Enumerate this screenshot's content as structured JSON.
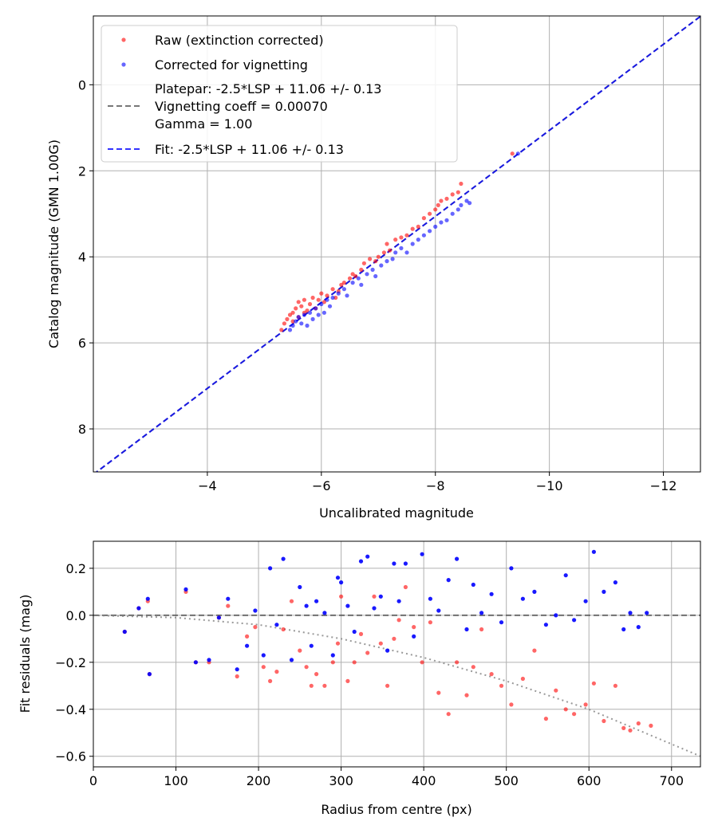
{
  "chart_data": [
    {
      "type": "scatter",
      "xlabel": "Uncalibrated magnitude",
      "ylabel": "Catalog magnitude (GMN 1.00G)",
      "xlim": [
        -2.0,
        -12.65
      ],
      "ylim": [
        9.0,
        -1.6
      ],
      "x_inverted": true,
      "y_inverted": true,
      "grid": true,
      "xticks": [
        -4,
        -6,
        -8,
        -10,
        -12
      ],
      "xtick_labels": [
        "−4",
        "−6",
        "−8",
        "−10",
        "−12"
      ],
      "yticks": [
        0,
        2,
        4,
        6,
        8
      ],
      "ytick_labels": [
        "0",
        "2",
        "4",
        "6",
        "8"
      ],
      "legend_position": "upper-left",
      "legend": [
        {
          "label": "Raw (extinction corrected)",
          "kind": "marker",
          "color": "#ff0000"
        },
        {
          "label": "Corrected for vignetting",
          "kind": "marker",
          "color": "#0000ff"
        },
        {
          "label_lines": [
            "Platepar: -2.5*LSP + 11.06 +/- 0.13",
            "Vignetting coeff = 0.00070",
            "Gamma = 1.00"
          ],
          "kind": "line",
          "color": "#555555",
          "dash": "dashed"
        },
        {
          "label": "Fit: -2.5*LSP + 11.06 +/- 0.13",
          "kind": "line",
          "color": "#0000ff",
          "dash": "dashed"
        }
      ],
      "lines": [
        {
          "name": "platepar",
          "slope": 1,
          "intercept": 11.06,
          "color": "#555555",
          "dash": "dashed"
        },
        {
          "name": "fit",
          "slope": 1,
          "intercept": 11.06,
          "color": "#0000ff",
          "dash": "dashed"
        }
      ],
      "series": [
        {
          "name": "Raw (extinction corrected)",
          "color": "#ff0000",
          "points": [
            [
              -5.3,
              5.7
            ],
            [
              -5.35,
              5.55
            ],
            [
              -5.4,
              5.45
            ],
            [
              -5.45,
              5.35
            ],
            [
              -5.5,
              5.3
            ],
            [
              -5.5,
              5.5
            ],
            [
              -5.55,
              5.2
            ],
            [
              -5.6,
              5.05
            ],
            [
              -5.6,
              5.4
            ],
            [
              -5.65,
              5.15
            ],
            [
              -5.7,
              5.0
            ],
            [
              -5.7,
              5.3
            ],
            [
              -5.75,
              5.25
            ],
            [
              -5.8,
              5.1
            ],
            [
              -5.85,
              4.95
            ],
            [
              -5.9,
              5.2
            ],
            [
              -5.95,
              5.0
            ],
            [
              -6.0,
              4.85
            ],
            [
              -6.05,
              5.05
            ],
            [
              -6.1,
              4.9
            ],
            [
              -6.2,
              4.75
            ],
            [
              -6.25,
              4.95
            ],
            [
              -6.3,
              4.8
            ],
            [
              -6.35,
              4.65
            ],
            [
              -6.4,
              4.6
            ],
            [
              -6.5,
              4.5
            ],
            [
              -6.55,
              4.4
            ],
            [
              -6.6,
              4.45
            ],
            [
              -6.7,
              4.3
            ],
            [
              -6.75,
              4.15
            ],
            [
              -6.85,
              4.05
            ],
            [
              -6.95,
              4.1
            ],
            [
              -7.0,
              4.0
            ],
            [
              -7.1,
              3.9
            ],
            [
              -7.15,
              3.7
            ],
            [
              -7.2,
              3.85
            ],
            [
              -7.3,
              3.6
            ],
            [
              -7.4,
              3.55
            ],
            [
              -7.5,
              3.5
            ],
            [
              -7.6,
              3.35
            ],
            [
              -7.7,
              3.3
            ],
            [
              -7.8,
              3.1
            ],
            [
              -7.9,
              3.0
            ],
            [
              -8.0,
              2.9
            ],
            [
              -8.05,
              2.8
            ],
            [
              -8.1,
              2.7
            ],
            [
              -8.2,
              2.65
            ],
            [
              -8.3,
              2.55
            ],
            [
              -8.4,
              2.5
            ],
            [
              -8.45,
              2.3
            ],
            [
              -9.35,
              1.6
            ]
          ]
        },
        {
          "name": "Corrected for vignetting",
          "color": "#0000ff",
          "points": [
            [
              -5.45,
              5.7
            ],
            [
              -5.5,
              5.6
            ],
            [
              -5.55,
              5.5
            ],
            [
              -5.6,
              5.4
            ],
            [
              -5.65,
              5.55
            ],
            [
              -5.7,
              5.35
            ],
            [
              -5.75,
              5.6
            ],
            [
              -5.8,
              5.3
            ],
            [
              -5.85,
              5.45
            ],
            [
              -5.9,
              5.2
            ],
            [
              -5.95,
              5.35
            ],
            [
              -6.0,
              5.1
            ],
            [
              -6.05,
              5.3
            ],
            [
              -6.1,
              5.0
            ],
            [
              -6.15,
              5.15
            ],
            [
              -6.2,
              4.95
            ],
            [
              -6.3,
              4.85
            ],
            [
              -6.4,
              4.75
            ],
            [
              -6.45,
              4.9
            ],
            [
              -6.55,
              4.6
            ],
            [
              -6.65,
              4.5
            ],
            [
              -6.7,
              4.65
            ],
            [
              -6.8,
              4.4
            ],
            [
              -6.9,
              4.3
            ],
            [
              -6.95,
              4.45
            ],
            [
              -7.05,
              4.2
            ],
            [
              -7.15,
              4.1
            ],
            [
              -7.25,
              4.05
            ],
            [
              -7.3,
              3.9
            ],
            [
              -7.4,
              3.8
            ],
            [
              -7.5,
              3.9
            ],
            [
              -7.6,
              3.7
            ],
            [
              -7.7,
              3.6
            ],
            [
              -7.8,
              3.5
            ],
            [
              -7.9,
              3.4
            ],
            [
              -8.0,
              3.3
            ],
            [
              -8.1,
              3.2
            ],
            [
              -8.2,
              3.15
            ],
            [
              -8.3,
              3.0
            ],
            [
              -8.4,
              2.9
            ],
            [
              -8.45,
              2.8
            ],
            [
              -8.55,
              2.7
            ],
            [
              -8.6,
              2.75
            ],
            [
              -9.45,
              1.6
            ]
          ]
        }
      ]
    },
    {
      "type": "scatter",
      "xlabel": "Radius from centre (px)",
      "ylabel": "Fit residuals (mag)",
      "xlim": [
        0,
        735
      ],
      "ylim": [
        -0.645,
        0.315
      ],
      "grid": true,
      "xticks": [
        0,
        100,
        200,
        300,
        400,
        500,
        600,
        700
      ],
      "xtick_labels": [
        "0",
        "100",
        "200",
        "300",
        "400",
        "500",
        "600",
        "700"
      ],
      "yticks": [
        0.2,
        0.0,
        -0.2,
        -0.4,
        -0.6
      ],
      "ytick_labels": [
        "0.2",
        "0.0",
        "−0.2",
        "−0.4",
        "−0.6"
      ],
      "lines": [
        {
          "name": "zero",
          "points": [
            [
              0,
              0
            ],
            [
              735,
              0
            ]
          ],
          "color": "#555555",
          "dash": "dashed"
        },
        {
          "name": "vignetting-model",
          "points": [
            [
              0,
              0
            ],
            [
              100,
              -0.01
            ],
            [
              200,
              -0.04
            ],
            [
              300,
              -0.1
            ],
            [
              400,
              -0.18
            ],
            [
              500,
              -0.28
            ],
            [
              600,
              -0.4
            ],
            [
              735,
              -0.6
            ]
          ],
          "color": "#808080",
          "dash": "dotted"
        }
      ],
      "series": [
        {
          "name": "Raw",
          "color": "#ff0000",
          "points": [
            [
              38,
              -0.07
            ],
            [
              55,
              0.03
            ],
            [
              66,
              0.06
            ],
            [
              68,
              -0.25
            ],
            [
              112,
              0.1
            ],
            [
              124,
              -0.2
            ],
            [
              140,
              -0.2
            ],
            [
              152,
              -0.01
            ],
            [
              163,
              0.04
            ],
            [
              174,
              -0.26
            ],
            [
              186,
              -0.09
            ],
            [
              196,
              -0.05
            ],
            [
              206,
              -0.22
            ],
            [
              214,
              -0.28
            ],
            [
              222,
              -0.24
            ],
            [
              230,
              -0.06
            ],
            [
              240,
              0.06
            ],
            [
              250,
              -0.15
            ],
            [
              258,
              -0.22
            ],
            [
              264,
              -0.3
            ],
            [
              270,
              -0.25
            ],
            [
              280,
              -0.3
            ],
            [
              290,
              -0.2
            ],
            [
              296,
              -0.12
            ],
            [
              300,
              0.08
            ],
            [
              308,
              -0.28
            ],
            [
              316,
              -0.2
            ],
            [
              324,
              -0.08
            ],
            [
              332,
              -0.16
            ],
            [
              340,
              0.08
            ],
            [
              348,
              -0.12
            ],
            [
              356,
              -0.3
            ],
            [
              364,
              -0.1
            ],
            [
              370,
              -0.02
            ],
            [
              378,
              0.12
            ],
            [
              388,
              -0.05
            ],
            [
              398,
              -0.2
            ],
            [
              408,
              -0.03
            ],
            [
              418,
              -0.33
            ],
            [
              430,
              -0.42
            ],
            [
              440,
              -0.2
            ],
            [
              452,
              -0.34
            ],
            [
              460,
              -0.22
            ],
            [
              470,
              -0.06
            ],
            [
              482,
              -0.25
            ],
            [
              494,
              -0.3
            ],
            [
              506,
              -0.38
            ],
            [
              520,
              -0.27
            ],
            [
              534,
              -0.15
            ],
            [
              548,
              -0.44
            ],
            [
              560,
              -0.32
            ],
            [
              572,
              -0.4
            ],
            [
              582,
              -0.42
            ],
            [
              596,
              -0.38
            ],
            [
              606,
              -0.29
            ],
            [
              618,
              -0.45
            ],
            [
              632,
              -0.3
            ],
            [
              642,
              -0.48
            ],
            [
              650,
              -0.49
            ],
            [
              660,
              -0.46
            ],
            [
              675,
              -0.47
            ]
          ]
        },
        {
          "name": "Corrected",
          "color": "#0000ff",
          "points": [
            [
              38,
              -0.07
            ],
            [
              55,
              0.03
            ],
            [
              66,
              0.07
            ],
            [
              68,
              -0.25
            ],
            [
              112,
              0.11
            ],
            [
              124,
              -0.2
            ],
            [
              140,
              -0.19
            ],
            [
              152,
              -0.01
            ],
            [
              163,
              0.07
            ],
            [
              174,
              -0.23
            ],
            [
              186,
              -0.13
            ],
            [
              196,
              0.02
            ],
            [
              206,
              -0.17
            ],
            [
              214,
              0.2
            ],
            [
              222,
              -0.04
            ],
            [
              230,
              0.24
            ],
            [
              240,
              -0.19
            ],
            [
              250,
              0.12
            ],
            [
              258,
              0.04
            ],
            [
              264,
              -0.13
            ],
            [
              270,
              0.06
            ],
            [
              280,
              0.01
            ],
            [
              290,
              -0.17
            ],
            [
              296,
              0.16
            ],
            [
              300,
              0.14
            ],
            [
              308,
              0.04
            ],
            [
              316,
              -0.07
            ],
            [
              324,
              0.23
            ],
            [
              332,
              0.25
            ],
            [
              340,
              0.03
            ],
            [
              348,
              0.08
            ],
            [
              356,
              -0.15
            ],
            [
              364,
              0.22
            ],
            [
              370,
              0.06
            ],
            [
              378,
              0.22
            ],
            [
              388,
              -0.09
            ],
            [
              398,
              0.26
            ],
            [
              408,
              0.07
            ],
            [
              418,
              0.02
            ],
            [
              430,
              0.15
            ],
            [
              440,
              0.24
            ],
            [
              452,
              -0.06
            ],
            [
              460,
              0.13
            ],
            [
              470,
              0.01
            ],
            [
              482,
              0.09
            ],
            [
              494,
              -0.03
            ],
            [
              506,
              0.2
            ],
            [
              520,
              0.07
            ],
            [
              534,
              0.1
            ],
            [
              548,
              -0.04
            ],
            [
              560,
              0.0
            ],
            [
              572,
              0.17
            ],
            [
              582,
              -0.02
            ],
            [
              596,
              0.06
            ],
            [
              606,
              0.27
            ],
            [
              618,
              0.1
            ],
            [
              632,
              0.14
            ],
            [
              642,
              -0.06
            ],
            [
              650,
              0.01
            ],
            [
              660,
              -0.05
            ],
            [
              670,
              0.01
            ]
          ]
        }
      ]
    }
  ]
}
